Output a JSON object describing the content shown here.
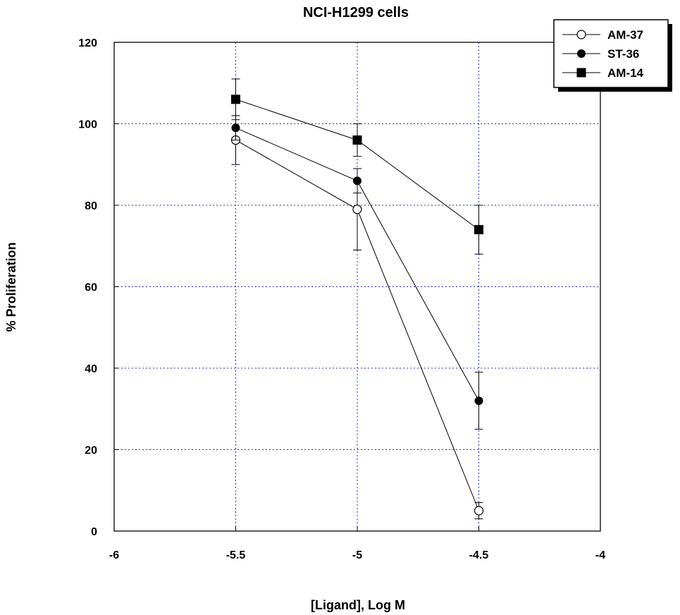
{
  "chart_data": {
    "type": "line",
    "title": "NCI-H1299 cells",
    "xlabel": "[Ligand], Log M",
    "ylabel": "% Proliferation",
    "xlim": [
      -6,
      -4
    ],
    "ylim": [
      0,
      120
    ],
    "xticks": [
      -6,
      -5.5,
      -5,
      -4.5,
      -4
    ],
    "xtick_labels": [
      "-6",
      "-5.5",
      "-5",
      "-4.5",
      "-4"
    ],
    "yticks": [
      0,
      20,
      40,
      60,
      80,
      100,
      120
    ],
    "ytick_labels": [
      "0",
      "20",
      "40",
      "60",
      "80",
      "100",
      "120"
    ],
    "grid": true,
    "legend_position": "top-right",
    "series": [
      {
        "name": "AM-37",
        "marker": "open-circle",
        "x": [
          -5.5,
          -5,
          -4.5
        ],
        "y": [
          96,
          79,
          5
        ],
        "err": [
          6,
          10,
          2
        ]
      },
      {
        "name": "ST-36",
        "marker": "filled-circle",
        "x": [
          -5.5,
          -5,
          -4.5
        ],
        "y": [
          99,
          86,
          32
        ],
        "err": [
          3,
          3,
          7
        ]
      },
      {
        "name": "AM-14",
        "marker": "filled-square",
        "x": [
          -5.5,
          -5,
          -4.5
        ],
        "y": [
          106,
          96,
          74
        ],
        "err": [
          5,
          4,
          6
        ]
      }
    ]
  }
}
